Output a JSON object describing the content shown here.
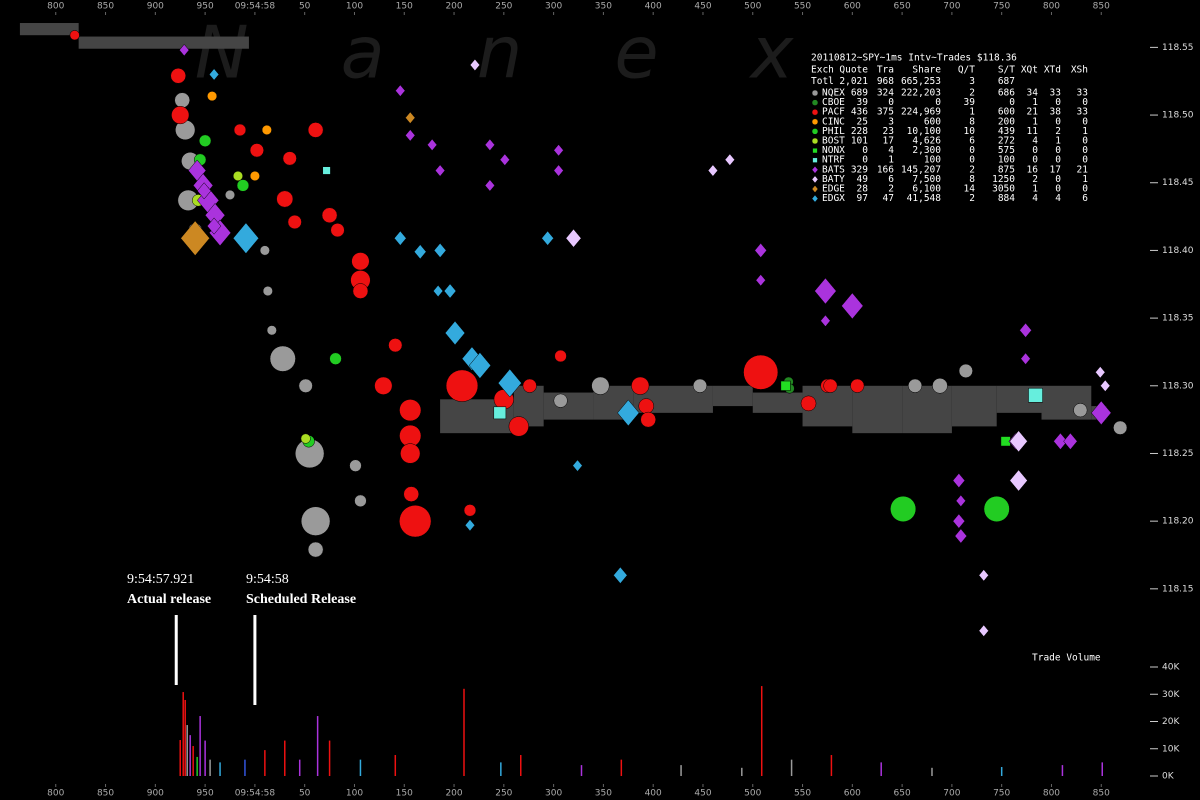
{
  "chart_data": {
    "type": "scatter",
    "watermark": "Nanex",
    "volume_label": "Trade Volume",
    "xlim": [
      744,
      1909
    ],
    "xticks": [
      800,
      850,
      900,
      950,
      {
        "value": 1000,
        "label": "09:54:58"
      },
      {
        "value": 1050,
        "label": "50"
      },
      {
        "value": 1100,
        "label": "100"
      },
      {
        "value": 1150,
        "label": "150"
      },
      {
        "value": 1200,
        "label": "200"
      },
      {
        "value": 1250,
        "label": "250"
      },
      {
        "value": 1300,
        "label": "300"
      },
      {
        "value": 1350,
        "label": "350"
      },
      {
        "value": 1400,
        "label": "400"
      },
      {
        "value": 1450,
        "label": "450"
      },
      {
        "value": 1500,
        "label": "500"
      },
      {
        "value": 1550,
        "label": "550"
      },
      {
        "value": 1600,
        "label": "600"
      },
      {
        "value": 1650,
        "label": "650"
      },
      {
        "value": 1700,
        "label": "700"
      },
      {
        "value": 1750,
        "label": "750"
      },
      {
        "value": 1800,
        "label": "800"
      },
      {
        "value": 1850,
        "label": "850"
      }
    ],
    "ylim": [
      117.994,
      118.585
    ],
    "yticks": [
      118.15,
      {
        "value": 118.2,
        "label": "118.20"
      },
      118.25,
      {
        "value": 118.3,
        "label": "118.30"
      },
      118.35,
      {
        "value": 118.4,
        "label": "118.40"
      },
      118.45,
      {
        "value": 118.5,
        "label": "118.50"
      },
      118.55
    ],
    "y2lim": [
      0,
      40000
    ],
    "y2ticks": [
      {
        "value": 0,
        "label": "0K"
      },
      {
        "value": 10000,
        "label": "10K"
      },
      {
        "value": 20000,
        "label": "20K"
      },
      {
        "value": 30000,
        "label": "30K"
      },
      {
        "value": 40000,
        "label": "40K"
      }
    ],
    "annotations": [
      {
        "time": "9:54:57.921",
        "text": "Actual release",
        "x": 921
      },
      {
        "time": "9:54:58",
        "text": "Scheduled Release",
        "x": 1000
      }
    ],
    "spread": {
      "color": "#454545",
      "x": [
        764,
        823,
        994,
        1186,
        1260,
        1290,
        1340,
        1380,
        1460,
        1500,
        1550,
        1600,
        1650,
        1700,
        1745,
        1790,
        1840,
        1855
      ],
      "high": [
        118.568,
        118.558,
        null,
        118.29,
        118.3,
        118.295,
        118.3,
        118.3,
        118.3,
        118.295,
        118.3,
        118.3,
        118.3,
        118.3,
        118.3,
        118.3,
        118.285,
        null
      ],
      "low": [
        118.559,
        118.549,
        null,
        118.265,
        118.27,
        118.275,
        118.275,
        118.28,
        118.285,
        118.28,
        118.27,
        118.265,
        118.265,
        118.27,
        118.28,
        118.275,
        118.275,
        null
      ]
    },
    "series": [
      {
        "name": "NQEX",
        "color": "#9a9a9a",
        "shape": "circle",
        "x": [
          927,
          930,
          935,
          933,
          940,
          975,
          1010,
          1013,
          1017,
          1028,
          1051,
          1055,
          1061,
          1061,
          1101,
          1106,
          1307,
          1347,
          1447,
          1663,
          1688,
          1714,
          1829,
          1869
        ],
        "values": [
          118.511,
          118.489,
          118.466,
          118.437,
          118.415,
          118.441,
          118.4,
          118.37,
          118.341,
          118.32,
          118.3,
          118.25,
          118.2,
          118.179,
          118.241,
          118.215,
          118.289,
          118.3,
          118.3,
          118.3,
          118.3,
          118.311,
          118.282,
          118.269
        ],
        "sizes": [
          400,
          800,
          600,
          900,
          300,
          100,
          100,
          100,
          100,
          1500,
          300,
          2000,
          2000,
          400,
          200,
          200,
          300,
          600,
          300,
          300,
          400,
          300,
          300,
          300
        ]
      },
      {
        "name": "CBOE",
        "color": "#228822",
        "shape": "circle",
        "x": [
          1536,
          1537
        ],
        "values": [
          118.303,
          118.298
        ],
        "sizes": [
          100,
          100
        ]
      },
      {
        "name": "PACF",
        "color": "#ee1111",
        "shape": "circle",
        "x": [
          819,
          923,
          925,
          985,
          1002,
          1035,
          1061,
          1030,
          1040,
          1075,
          1083,
          1106,
          1106,
          1106,
          1141,
          1129,
          1156,
          1156,
          1156,
          1161,
          1157,
          1216,
          1208,
          1250,
          1265,
          1276,
          1307,
          1387,
          1393,
          1395,
          1508,
          1556,
          1575,
          1578,
          1605,
          1784
        ],
        "values": [
          118.559,
          118.529,
          118.5,
          118.489,
          118.474,
          118.468,
          118.489,
          118.438,
          118.421,
          118.426,
          118.415,
          118.392,
          118.378,
          118.37,
          118.33,
          118.3,
          118.282,
          118.263,
          118.25,
          118.2,
          118.22,
          118.208,
          118.3,
          118.29,
          118.27,
          118.3,
          118.322,
          118.3,
          118.285,
          118.275,
          118.31,
          118.287,
          118.3,
          118.3,
          118.3,
          118.293
        ],
        "sizes": [
          100,
          400,
          600,
          200,
          300,
          300,
          400,
          500,
          300,
          400,
          300,
          600,
          800,
          400,
          300,
          600,
          1000,
          1000,
          800,
          2500,
          400,
          200,
          2500,
          800,
          800,
          300,
          200,
          600,
          400,
          400,
          3000,
          400,
          300,
          300,
          300,
          300
        ]
      },
      {
        "name": "CINC",
        "color": "#ff9900",
        "shape": "circle",
        "x": [
          957,
          1012,
          1000
        ],
        "values": [
          118.514,
          118.489,
          118.455
        ],
        "sizes": [
          100,
          100,
          100
        ]
      },
      {
        "name": "PHIL",
        "color": "#22cc22",
        "shape": "circle",
        "x": [
          945,
          950,
          988,
          1081,
          1054,
          1651,
          1745
        ],
        "values": [
          118.467,
          118.481,
          118.448,
          118.32,
          118.259,
          118.209,
          118.209
        ],
        "sizes": [
          200,
          200,
          200,
          200,
          200,
          1500,
          1500
        ]
      },
      {
        "name": "BOST",
        "color": "#aadd22",
        "shape": "circle",
        "x": [
          943,
          983,
          1051
        ],
        "values": [
          118.437,
          118.455,
          118.261
        ],
        "sizes": [
          200,
          100,
          100
        ]
      },
      {
        "name": "NONX",
        "color": "#22dd22",
        "shape": "square",
        "x": [
          1533,
          1754
        ],
        "values": [
          118.3,
          118.259
        ],
        "sizes": [
          200,
          200
        ]
      },
      {
        "name": "NTRF",
        "color": "#66eedd",
        "shape": "square",
        "x": [
          1072,
          1246,
          1784
        ],
        "values": [
          118.459,
          118.28,
          118.293
        ],
        "sizes": [
          100,
          400,
          600
        ]
      },
      {
        "name": "BATS",
        "color": "#aa33dd",
        "shape": "diamond",
        "x": [
          929,
          942,
          948,
          953,
          960,
          965,
          949,
          959,
          1146,
          1156,
          1156,
          1178,
          1186,
          1236,
          1251,
          1236,
          1305,
          1305,
          1508,
          1508,
          1573,
          1600,
          1573,
          1707,
          1709,
          1707,
          1709,
          1764,
          1774,
          1774,
          1809,
          1819,
          1850
        ],
        "values": [
          118.548,
          118.459,
          118.448,
          118.437,
          118.426,
          118.413,
          118.444,
          118.418,
          118.518,
          118.498,
          118.485,
          118.478,
          118.459,
          118.478,
          118.467,
          118.448,
          118.474,
          118.459,
          118.4,
          118.378,
          118.37,
          118.359,
          118.348,
          118.23,
          118.215,
          118.2,
          118.189,
          118.259,
          118.341,
          118.32,
          118.259,
          118.259,
          118.28
        ],
        "sizes": [
          100,
          600,
          800,
          1000,
          800,
          1000,
          300,
          300,
          100,
          100,
          100,
          100,
          100,
          100,
          100,
          100,
          100,
          100,
          200,
          100,
          1000,
          1000,
          100,
          200,
          100,
          200,
          200,
          300,
          200,
          100,
          300,
          300,
          800
        ]
      },
      {
        "name": "BATY",
        "color": "#e8c8ff",
        "shape": "diamond",
        "x": [
          1221,
          1320,
          1477,
          1460,
          1732,
          1732,
          1849,
          1854,
          1767,
          1767
        ],
        "values": [
          118.537,
          118.409,
          118.467,
          118.459,
          118.16,
          118.119,
          118.31,
          118.3,
          118.259,
          118.23
        ],
        "sizes": [
          100,
          400,
          100,
          100,
          100,
          100,
          100,
          100,
          600,
          600
        ]
      },
      {
        "name": "EDGE",
        "color": "#cc8822",
        "shape": "diamond",
        "x": [
          940,
          1156
        ],
        "values": [
          118.409,
          118.498
        ],
        "sizes": [
          2000,
          100
        ]
      },
      {
        "name": "EDGX",
        "color": "#33aadd",
        "shape": "diamond",
        "x": [
          959,
          991,
          1146,
          1166,
          1184,
          1186,
          1201,
          1218,
          1226,
          1256,
          1375,
          1367,
          1294,
          1324,
          1216,
          1196
        ],
        "values": [
          118.53,
          118.409,
          118.409,
          118.399,
          118.37,
          118.4,
          118.339,
          118.32,
          118.315,
          118.302,
          118.28,
          118.16,
          118.409,
          118.241,
          118.197,
          118.37
        ],
        "sizes": [
          100,
          1500,
          200,
          200,
          100,
          200,
          800,
          800,
          1000,
          1200,
          1000,
          300,
          200,
          100,
          100,
          200
        ]
      }
    ],
    "volume": {
      "axis": "y2",
      "x": [
        925,
        928,
        930,
        932,
        935,
        938,
        942,
        945,
        950,
        955,
        965,
        990,
        1010,
        1030,
        1045,
        1063,
        1075,
        1106,
        1141,
        1210,
        1247,
        1267,
        1328,
        1368,
        1428,
        1489,
        1509,
        1539,
        1579,
        1629,
        1680,
        1750,
        1811,
        1851
      ],
      "values": [
        13200,
        30800,
        27900,
        18700,
        15000,
        11000,
        7000,
        22000,
        13000,
        6000,
        5000,
        6000,
        9500,
        13000,
        6000,
        22000,
        13000,
        6000,
        7700,
        32000,
        5000,
        7700,
        4000,
        6000,
        4000,
        3000,
        33000,
        6000,
        7700,
        5000,
        3000,
        3300,
        4000,
        5000
      ],
      "colors": [
        "#ee1111",
        "#ee1111",
        "#ee1111",
        "#9a9a9a",
        "#aa33dd",
        "#ee1111",
        "#22cc22",
        "#aa33dd",
        "#aa33dd",
        "#9a9a9a",
        "#33aadd",
        "#3355dd",
        "#ee1111",
        "#ee1111",
        "#aa33dd",
        "#aa33dd",
        "#ee1111",
        "#33aadd",
        "#ee1111",
        "#ee1111",
        "#33aadd",
        "#ee1111",
        "#aa33dd",
        "#ee1111",
        "#9a9a9a",
        "#9a9a9a",
        "#ee1111",
        "#9a9a9a",
        "#ee1111",
        "#aa33dd",
        "#9a9a9a",
        "#33aadd",
        "#aa33dd",
        "#aa33dd"
      ]
    }
  },
  "legend_table": {
    "title": "20110812~SPY~1ms Intv~Trades $118.36",
    "columns": [
      "Exch",
      "Quote",
      "Tra",
      "Share",
      "Q/T",
      "S/T",
      "XQt",
      "XTd",
      "XSh"
    ],
    "total": [
      "Totl",
      "2,021",
      "968",
      "665,253",
      "3",
      "687"
    ],
    "rows": [
      [
        "689",
        "324",
        "222,203",
        "2",
        "686",
        "34",
        "33",
        "33"
      ],
      [
        "39",
        "0",
        "0",
        "39",
        "0",
        "1",
        "0",
        "0"
      ],
      [
        "436",
        "375",
        "224,969",
        "1",
        "600",
        "21",
        "38",
        "33"
      ],
      [
        "25",
        "3",
        "600",
        "8",
        "200",
        "1",
        "0",
        "0"
      ],
      [
        "228",
        "23",
        "10,100",
        "10",
        "439",
        "11",
        "2",
        "1"
      ],
      [
        "101",
        "17",
        "4,626",
        "6",
        "272",
        "4",
        "1",
        "0"
      ],
      [
        "0",
        "4",
        "2,300",
        "0",
        "575",
        "0",
        "0",
        "0"
      ],
      [
        "0",
        "1",
        "100",
        "0",
        "100",
        "0",
        "0",
        "0"
      ],
      [
        "329",
        "166",
        "145,207",
        "2",
        "875",
        "16",
        "17",
        "21"
      ],
      [
        "49",
        "6",
        "7,500",
        "8",
        "1250",
        "2",
        "0",
        "1"
      ],
      [
        "28",
        "2",
        "6,100",
        "14",
        "3050",
        "1",
        "0",
        "0"
      ],
      [
        "97",
        "47",
        "41,548",
        "2",
        "884",
        "4",
        "4",
        "6"
      ]
    ]
  }
}
